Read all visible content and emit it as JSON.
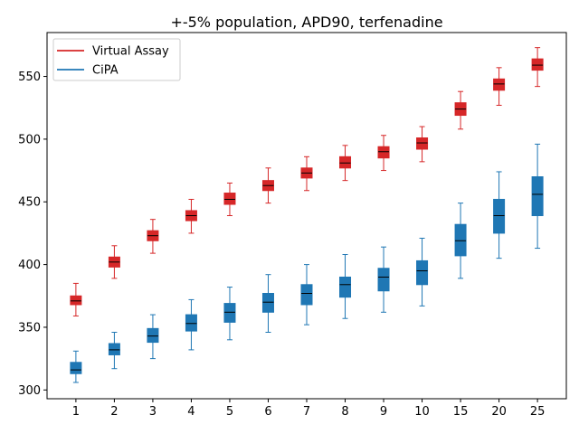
{
  "chart_data": {
    "type": "box",
    "title": "+-5% population, APD90, terfenadine",
    "xlabel": "",
    "ylabel": "",
    "categories": [
      "1",
      "2",
      "3",
      "4",
      "5",
      "6",
      "7",
      "8",
      "9",
      "10",
      "15",
      "20",
      "25"
    ],
    "ylim": [
      293,
      585
    ],
    "yticks": [
      300,
      350,
      400,
      450,
      500,
      550
    ],
    "grid": false,
    "legend": "top-left",
    "series": [
      {
        "name": "Virtual Assay",
        "color": "#d62728",
        "boxes": [
          {
            "whislo": 359,
            "q1": 368,
            "med": 371,
            "q3": 375,
            "whishi": 385
          },
          {
            "whislo": 389,
            "q1": 398,
            "med": 402,
            "q3": 406,
            "whishi": 415
          },
          {
            "whislo": 409,
            "q1": 419,
            "med": 423,
            "q3": 427,
            "whishi": 436
          },
          {
            "whislo": 425,
            "q1": 435,
            "med": 439,
            "q3": 443,
            "whishi": 452
          },
          {
            "whislo": 439,
            "q1": 448,
            "med": 452,
            "q3": 457,
            "whishi": 465
          },
          {
            "whislo": 449,
            "q1": 459,
            "med": 463,
            "q3": 467,
            "whishi": 477
          },
          {
            "whislo": 459,
            "q1": 469,
            "med": 473,
            "q3": 477,
            "whishi": 486
          },
          {
            "whislo": 467,
            "q1": 477,
            "med": 481,
            "q3": 486,
            "whishi": 495
          },
          {
            "whislo": 475,
            "q1": 485,
            "med": 490,
            "q3": 494,
            "whishi": 503
          },
          {
            "whislo": 482,
            "q1": 492,
            "med": 497,
            "q3": 501,
            "whishi": 510
          },
          {
            "whislo": 508,
            "q1": 519,
            "med": 524,
            "q3": 529,
            "whishi": 538
          },
          {
            "whislo": 527,
            "q1": 539,
            "med": 544,
            "q3": 548,
            "whishi": 557
          },
          {
            "whislo": 542,
            "q1": 555,
            "med": 559,
            "q3": 564,
            "whishi": 573
          }
        ]
      },
      {
        "name": "CiPA",
        "color": "#1f77b4",
        "boxes": [
          {
            "whislo": 306,
            "q1": 313,
            "med": 316,
            "q3": 322,
            "whishi": 331
          },
          {
            "whislo": 317,
            "q1": 328,
            "med": 332,
            "q3": 337,
            "whishi": 346
          },
          {
            "whislo": 325,
            "q1": 338,
            "med": 343,
            "q3": 349,
            "whishi": 360
          },
          {
            "whislo": 332,
            "q1": 347,
            "med": 353,
            "q3": 360,
            "whishi": 372
          },
          {
            "whislo": 340,
            "q1": 354,
            "med": 362,
            "q3": 369,
            "whishi": 382
          },
          {
            "whislo": 346,
            "q1": 362,
            "med": 370,
            "q3": 377,
            "whishi": 392
          },
          {
            "whislo": 352,
            "q1": 368,
            "med": 377,
            "q3": 384,
            "whishi": 400
          },
          {
            "whislo": 357,
            "q1": 374,
            "med": 384,
            "q3": 390,
            "whishi": 408
          },
          {
            "whislo": 362,
            "q1": 379,
            "med": 390,
            "q3": 397,
            "whishi": 414
          },
          {
            "whislo": 367,
            "q1": 384,
            "med": 395,
            "q3": 403,
            "whishi": 421
          },
          {
            "whislo": 389,
            "q1": 407,
            "med": 419,
            "q3": 432,
            "whishi": 449
          },
          {
            "whislo": 405,
            "q1": 425,
            "med": 439,
            "q3": 452,
            "whishi": 474
          },
          {
            "whislo": 413,
            "q1": 439,
            "med": 456,
            "q3": 470,
            "whishi": 496
          }
        ]
      }
    ]
  }
}
